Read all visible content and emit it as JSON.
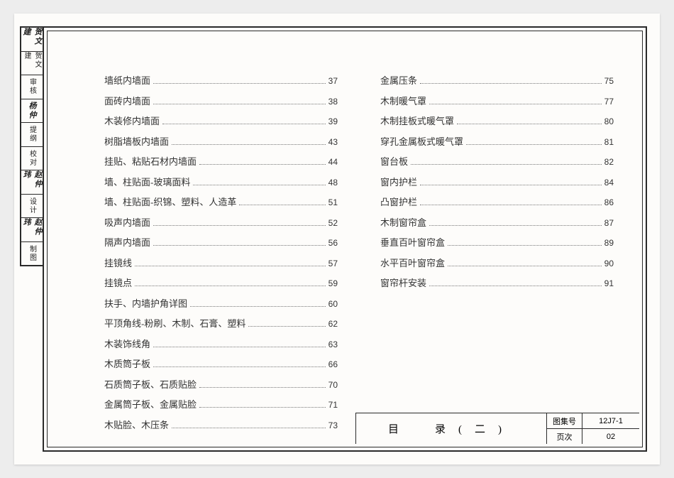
{
  "sidebar_labels": [
    {
      "role": "制图",
      "sig": "赵仲玮"
    },
    {
      "role": "设计",
      "sig": "赵仲玮"
    },
    {
      "role": "校对",
      "sig": ""
    },
    {
      "role": "提纲",
      "sig": "杨仲"
    },
    {
      "role": "审核",
      "sig": ""
    },
    {
      "role": "贺文建",
      "sig": "贺文建"
    }
  ],
  "toc_left": [
    {
      "t": "墙纸内墙面",
      "p": "37"
    },
    {
      "t": "面砖内墙面",
      "p": "38"
    },
    {
      "t": "木装修内墙面",
      "p": "39"
    },
    {
      "t": "树脂墙板内墙面",
      "p": "43"
    },
    {
      "t": "挂贴、粘贴石材内墙面",
      "p": "44"
    },
    {
      "t": "墙、柱贴面-玻璃面料",
      "p": "48"
    },
    {
      "t": "墙、柱贴面-织锦、塑料、人造革",
      "p": "51"
    },
    {
      "t": "吸声内墙面",
      "p": "52"
    },
    {
      "t": "隔声内墙面",
      "p": "56"
    },
    {
      "t": "挂镜线",
      "p": "57"
    },
    {
      "t": "挂镜点",
      "p": "59"
    },
    {
      "t": "扶手、内墙护角详图",
      "p": "60"
    },
    {
      "t": "平顶角线-粉刷、木制、石膏、塑料",
      "p": "62"
    },
    {
      "t": "木装饰线角",
      "p": "63"
    },
    {
      "t": "木质筒子板",
      "p": "66"
    },
    {
      "t": "石质筒子板、石质贴脸",
      "p": "70"
    },
    {
      "t": "金属筒子板、金属贴脸",
      "p": "71"
    },
    {
      "t": "木贴脸、木压条",
      "p": "73"
    }
  ],
  "toc_right": [
    {
      "t": "金属压条",
      "p": "75"
    },
    {
      "t": "木制暖气罩",
      "p": "77"
    },
    {
      "t": "木制挂板式暖气罩",
      "p": "80"
    },
    {
      "t": "穿孔金属板式暖气罩",
      "p": "81"
    },
    {
      "t": "窗台板",
      "p": "82"
    },
    {
      "t": "窗内护栏",
      "p": "84"
    },
    {
      "t": "凸窗护栏",
      "p": "86"
    },
    {
      "t": "木制窗帘盒",
      "p": "87"
    },
    {
      "t": "垂直百叶窗帘盒",
      "p": "89"
    },
    {
      "t": "水平百叶窗帘盒",
      "p": "90"
    },
    {
      "t": "窗帘杆安装",
      "p": "91"
    }
  ],
  "titleblock": {
    "title": "目　录(二)",
    "set_label": "图集号",
    "set_value": "12J7-1",
    "page_label": "页次",
    "page_value": "02"
  }
}
